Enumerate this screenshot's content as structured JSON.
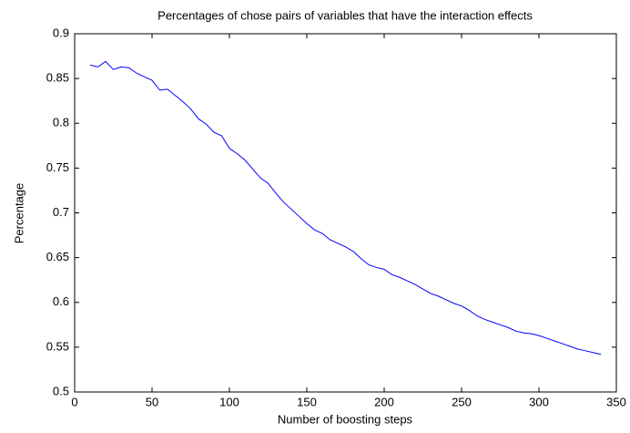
{
  "chart_data": {
    "type": "line",
    "title": "Percentages of chose pairs of variables that have the interaction effects",
    "x_label": "Number of boosting steps",
    "y_label": "Percentage",
    "x": [
      10,
      15,
      20,
      25,
      30,
      35,
      40,
      45,
      50,
      55,
      60,
      65,
      70,
      75,
      80,
      85,
      90,
      95,
      100,
      105,
      110,
      115,
      120,
      125,
      130,
      135,
      140,
      145,
      150,
      155,
      160,
      165,
      170,
      175,
      180,
      185,
      190,
      195,
      200,
      205,
      210,
      215,
      220,
      225,
      230,
      235,
      240,
      245,
      250,
      255,
      260,
      265,
      270,
      275,
      280,
      285,
      290,
      295,
      300,
      305,
      310,
      315,
      320,
      325,
      330,
      335,
      340
    ],
    "values": [
      0.865,
      0.863,
      0.869,
      0.86,
      0.863,
      0.862,
      0.856,
      0.852,
      0.848,
      0.837,
      0.838,
      0.831,
      0.824,
      0.816,
      0.805,
      0.799,
      0.79,
      0.786,
      0.772,
      0.766,
      0.759,
      0.749,
      0.739,
      0.733,
      0.722,
      0.712,
      0.704,
      0.696,
      0.688,
      0.681,
      0.677,
      0.67,
      0.666,
      0.662,
      0.657,
      0.649,
      0.642,
      0.639,
      0.637,
      0.631,
      0.628,
      0.624,
      0.62,
      0.615,
      0.61,
      0.607,
      0.603,
      0.599,
      0.596,
      0.591,
      0.585,
      0.581,
      0.578,
      0.575,
      0.572,
      0.568,
      0.566,
      0.565,
      0.563,
      0.56,
      0.557,
      0.554,
      0.551,
      0.548,
      0.546,
      0.544,
      0.542
    ],
    "color": "#0000ff",
    "xlim": [
      0,
      350
    ],
    "xticks": [
      0,
      50,
      100,
      150,
      200,
      250,
      300,
      350
    ],
    "ylim": [
      0.5,
      0.9
    ],
    "yticks": [
      0.5,
      0.55,
      0.6,
      0.65,
      0.7,
      0.75,
      0.8,
      0.85,
      0.9
    ],
    "grid": false
  }
}
